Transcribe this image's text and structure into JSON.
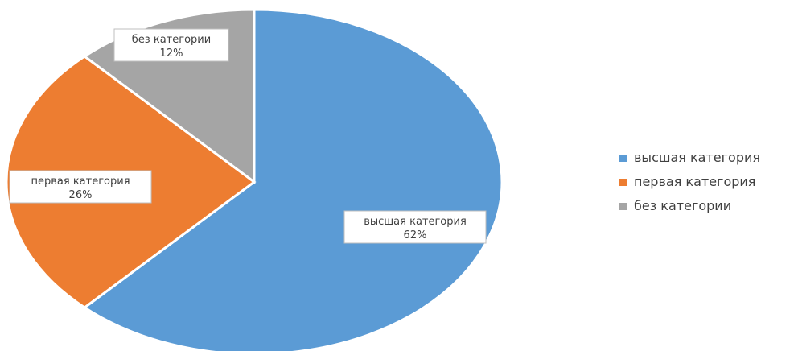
{
  "chart_data": {
    "type": "pie",
    "categories": [
      "высшая категория",
      "первая категория",
      "без категории"
    ],
    "values": [
      62,
      26,
      12
    ],
    "value_labels": [
      "62%",
      "26%",
      "12%"
    ],
    "colors": [
      "#5b9bd5",
      "#ed7d31",
      "#a5a5a5"
    ],
    "legend_position": "right"
  }
}
